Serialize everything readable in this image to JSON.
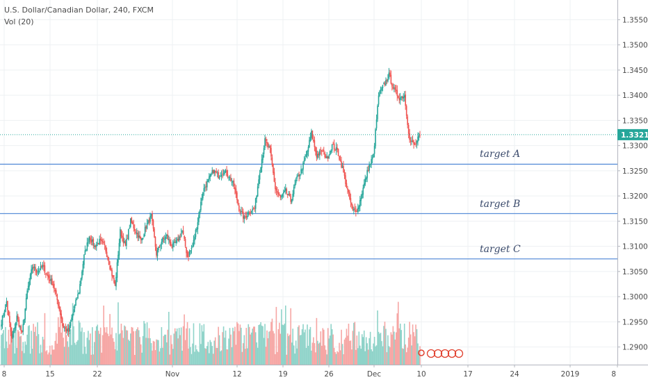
{
  "header": {
    "symbol_line": "U.S. Dollar/Canadian Dollar, 240, FXCM",
    "volume_line": "Vol (20)"
  },
  "colors": {
    "up": "#26a69a",
    "down": "#ef5350",
    "vol_up": "#8fd3c9",
    "vol_down": "#f6a6a4",
    "target_line": "#5b8fd9",
    "last_price": "#26a69a",
    "grid": "#eef0f3"
  },
  "chart_data": {
    "type": "candlestick",
    "timeframe": "240",
    "y_axis": {
      "ylim": [
        1.2865,
        1.3585
      ],
      "ticks": [
        "1.29000",
        "1.29500",
        "1.30000",
        "1.30500",
        "1.31000",
        "1.31500",
        "1.32000",
        "1.32500",
        "1.33000",
        "1.33500",
        "1.34000",
        "1.34500",
        "1.35000",
        "1.35500"
      ]
    },
    "x_axis": {
      "ticks": [
        "8",
        "15",
        "22",
        "Nov",
        "12",
        "19",
        "26",
        "Dec",
        "10",
        "17",
        "24",
        "2019",
        "8"
      ]
    },
    "last_price": {
      "value": 1.33217,
      "label": "1.33217"
    },
    "targets": [
      {
        "name": "target A",
        "price": 1.3263
      },
      {
        "name": "target B",
        "price": 1.3165
      },
      {
        "name": "target C",
        "price": 1.3075
      }
    ],
    "anchors": [
      [
        0,
        1.295
      ],
      [
        5,
        1.299
      ],
      [
        10,
        1.2915
      ],
      [
        15,
        1.296
      ],
      [
        20,
        1.2925
      ],
      [
        25,
        1.301
      ],
      [
        30,
        1.306
      ],
      [
        35,
        1.305
      ],
      [
        40,
        1.306
      ],
      [
        45,
        1.304
      ],
      [
        50,
        1.3025
      ],
      [
        55,
        1.2985
      ],
      [
        60,
        1.294
      ],
      [
        65,
        1.293
      ],
      [
        70,
        1.2975
      ],
      [
        75,
        1.301
      ],
      [
        80,
        1.308
      ],
      [
        85,
        1.312
      ],
      [
        90,
        1.31
      ],
      [
        95,
        1.311
      ],
      [
        100,
        1.31
      ],
      [
        105,
        1.306
      ],
      [
        110,
        1.302
      ],
      [
        115,
        1.313
      ],
      [
        120,
        1.31
      ],
      [
        125,
        1.315
      ],
      [
        130,
        1.313
      ],
      [
        135,
        1.311
      ],
      [
        140,
        1.314
      ],
      [
        145,
        1.316
      ],
      [
        150,
        1.3085
      ],
      [
        155,
        1.311
      ],
      [
        160,
        1.312
      ],
      [
        165,
        1.31
      ],
      [
        170,
        1.311
      ],
      [
        175,
        1.313
      ],
      [
        180,
        1.308
      ],
      [
        185,
        1.31
      ],
      [
        190,
        1.315
      ],
      [
        195,
        1.321
      ],
      [
        200,
        1.323
      ],
      [
        205,
        1.325
      ],
      [
        210,
        1.324
      ],
      [
        215,
        1.325
      ],
      [
        220,
        1.324
      ],
      [
        225,
        1.322
      ],
      [
        230,
        1.3175
      ],
      [
        235,
        1.3155
      ],
      [
        240,
        1.317
      ],
      [
        245,
        1.3175
      ],
      [
        250,
        1.325
      ],
      [
        255,
        1.331
      ],
      [
        260,
        1.329
      ],
      [
        265,
        1.3215
      ],
      [
        270,
        1.3195
      ],
      [
        275,
        1.321
      ],
      [
        280,
        1.319
      ],
      [
        285,
        1.323
      ],
      [
        290,
        1.325
      ],
      [
        295,
        1.328
      ],
      [
        300,
        1.3325
      ],
      [
        305,
        1.328
      ],
      [
        310,
        1.329
      ],
      [
        315,
        1.3275
      ],
      [
        320,
        1.33
      ],
      [
        325,
        1.329
      ],
      [
        330,
        1.3255
      ],
      [
        335,
        1.321
      ],
      [
        340,
        1.317
      ],
      [
        345,
        1.3175
      ],
      [
        350,
        1.3215
      ],
      [
        355,
        1.3255
      ],
      [
        360,
        1.328
      ],
      [
        365,
        1.34
      ],
      [
        370,
        1.342
      ],
      [
        375,
        1.344
      ],
      [
        380,
        1.341
      ],
      [
        385,
        1.3395
      ],
      [
        390,
        1.34
      ],
      [
        395,
        1.331
      ],
      [
        400,
        1.33
      ],
      [
        405,
        1.3321
      ]
    ]
  }
}
